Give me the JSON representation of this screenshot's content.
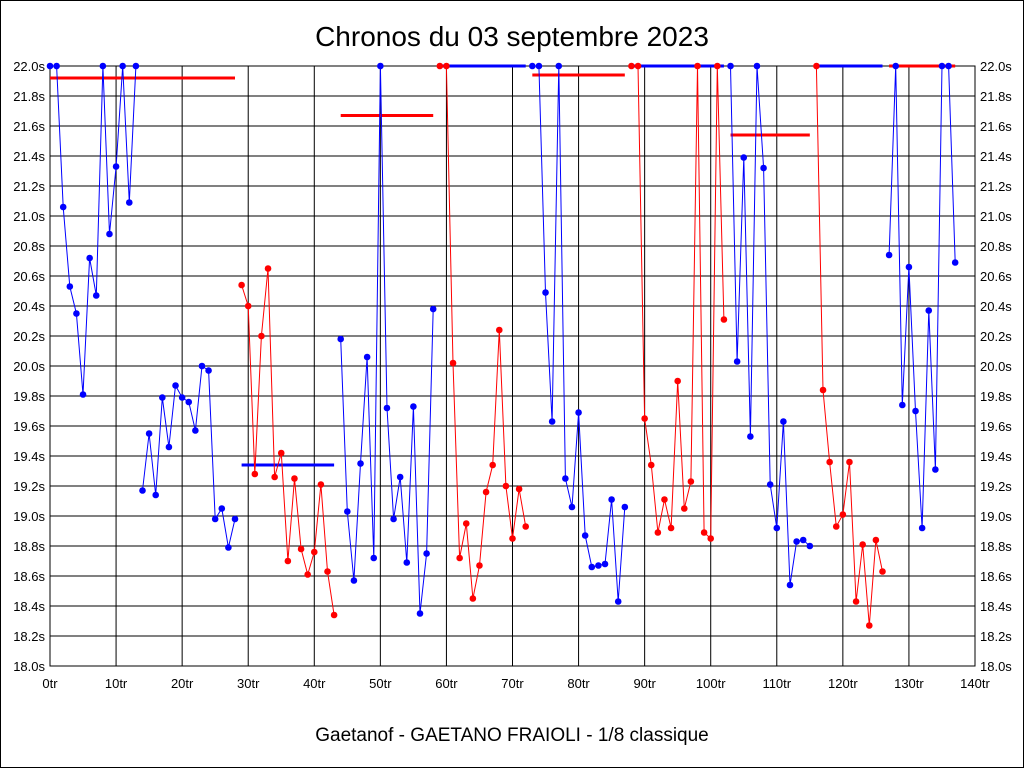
{
  "chart_data": {
    "type": "line",
    "title": "Chronos du 03 septembre 2023",
    "caption": "Gaetanof - GAETANO FRAIOLI - 1/8 classique",
    "xlim": [
      0,
      140
    ],
    "ylim": [
      18.0,
      22.0
    ],
    "x_ticks": [
      {
        "v": 0,
        "label": "0tr"
      },
      {
        "v": 10,
        "label": "10tr"
      },
      {
        "v": 20,
        "label": "20tr"
      },
      {
        "v": 30,
        "label": "30tr"
      },
      {
        "v": 40,
        "label": "40tr"
      },
      {
        "v": 50,
        "label": "50tr"
      },
      {
        "v": 60,
        "label": "60tr"
      },
      {
        "v": 70,
        "label": "70tr"
      },
      {
        "v": 80,
        "label": "80tr"
      },
      {
        "v": 90,
        "label": "90tr"
      },
      {
        "v": 100,
        "label": "100tr"
      },
      {
        "v": 110,
        "label": "110tr"
      },
      {
        "v": 120,
        "label": "120tr"
      },
      {
        "v": 130,
        "label": "130tr"
      },
      {
        "v": 140,
        "label": "140tr"
      }
    ],
    "y_ticks": [
      {
        "v": 18.0,
        "label": "18.0s"
      },
      {
        "v": 18.2,
        "label": "18.2s"
      },
      {
        "v": 18.4,
        "label": "18.4s"
      },
      {
        "v": 18.6,
        "label": "18.6s"
      },
      {
        "v": 18.8,
        "label": "18.8s"
      },
      {
        "v": 19.0,
        "label": "19.0s"
      },
      {
        "v": 19.2,
        "label": "19.2s"
      },
      {
        "v": 19.4,
        "label": "19.4s"
      },
      {
        "v": 19.6,
        "label": "19.6s"
      },
      {
        "v": 19.8,
        "label": "19.8s"
      },
      {
        "v": 20.0,
        "label": "20.0s"
      },
      {
        "v": 20.2,
        "label": "20.2s"
      },
      {
        "v": 20.4,
        "label": "20.4s"
      },
      {
        "v": 20.6,
        "label": "20.6s"
      },
      {
        "v": 20.8,
        "label": "20.8s"
      },
      {
        "v": 21.0,
        "label": "21.0s"
      },
      {
        "v": 21.2,
        "label": "21.2s"
      },
      {
        "v": 21.4,
        "label": "21.4s"
      },
      {
        "v": 21.6,
        "label": "21.6s"
      },
      {
        "v": 21.8,
        "label": "21.8s"
      },
      {
        "v": 22.0,
        "label": "22.0s"
      }
    ],
    "grid": true,
    "series": [
      {
        "color": "#0000ff",
        "x": [
          0,
          1,
          2,
          3,
          4,
          5,
          6,
          7,
          8,
          9,
          10,
          11,
          12,
          13
        ],
        "y": [
          22.0,
          22.0,
          21.06,
          20.53,
          20.35,
          19.81,
          20.72,
          20.47,
          22.0,
          20.88,
          21.33,
          22.0,
          21.09,
          22.0
        ]
      },
      {
        "color": "#0000ff",
        "x": [
          14,
          15,
          16,
          17,
          18,
          19,
          20,
          21,
          22,
          23,
          24,
          25,
          26,
          27,
          28
        ],
        "y": [
          19.17,
          19.55,
          19.14,
          19.79,
          19.46,
          19.87,
          19.79,
          19.76,
          19.57,
          20.0,
          19.97,
          18.98,
          19.05,
          18.79,
          18.98
        ]
      },
      {
        "color": "#ff0000",
        "x": [
          29,
          30,
          31,
          32,
          33,
          34,
          35,
          36,
          37,
          38,
          39,
          40,
          41,
          42,
          43
        ],
        "y": [
          20.54,
          20.4,
          19.28,
          20.2,
          20.65,
          19.26,
          19.42,
          18.7,
          19.25,
          18.78,
          18.61,
          18.76,
          19.21,
          18.63,
          18.34
        ]
      },
      {
        "color": "#0000ff",
        "x": [
          44,
          45,
          46,
          47,
          48,
          49,
          50,
          51,
          52,
          53,
          54,
          55,
          56,
          57,
          58
        ],
        "y": [
          20.18,
          19.03,
          18.57,
          19.35,
          20.06,
          18.72,
          22.0,
          19.72,
          18.98,
          19.26,
          18.69,
          19.73,
          18.35,
          18.75,
          20.38
        ]
      },
      {
        "color": "#ff0000",
        "x": [
          59,
          60,
          61,
          62,
          63,
          64,
          65,
          66,
          67,
          68,
          69,
          70,
          71,
          72
        ],
        "y": [
          22.0,
          22.0,
          20.02,
          18.72,
          18.95,
          18.45,
          18.67,
          19.16,
          19.34,
          20.24,
          19.2,
          18.85,
          19.18,
          18.93
        ]
      },
      {
        "color": "#0000ff",
        "x": [
          73,
          74,
          75,
          76,
          77,
          78,
          79,
          80,
          81,
          82,
          83,
          84,
          85,
          86,
          87
        ],
        "y": [
          22.0,
          22.0,
          20.49,
          19.63,
          22.0,
          19.25,
          19.06,
          19.69,
          18.87,
          18.66,
          18.67,
          18.68,
          19.11,
          18.43,
          19.06
        ]
      },
      {
        "color": "#ff0000",
        "x": [
          88,
          89,
          90,
          91,
          92,
          93,
          94,
          95,
          96,
          97,
          98,
          99,
          100,
          101,
          102
        ],
        "y": [
          22.0,
          22.0,
          19.65,
          19.34,
          18.89,
          19.11,
          18.92,
          19.9,
          19.05,
          19.23,
          22.0,
          18.89,
          18.85,
          22.0,
          20.31
        ]
      },
      {
        "color": "#0000ff",
        "x": [
          103,
          104,
          105,
          106,
          107,
          108,
          109,
          110,
          111,
          112,
          113,
          114,
          115
        ],
        "y": [
          22.0,
          20.03,
          21.39,
          19.53,
          22.0,
          21.32,
          19.21,
          18.92,
          19.63,
          18.54,
          18.83,
          18.84,
          18.8
        ]
      },
      {
        "color": "#ff0000",
        "x": [
          116,
          117,
          118,
          119,
          120,
          121,
          122,
          123,
          124,
          125,
          126
        ],
        "y": [
          22.0,
          19.84,
          19.36,
          18.93,
          19.01,
          19.36,
          18.43,
          18.81,
          18.27,
          18.84,
          18.63
        ]
      },
      {
        "color": "#0000ff",
        "x": [
          127,
          128,
          129,
          130,
          131,
          132,
          133,
          134,
          135,
          136,
          137
        ],
        "y": [
          20.74,
          22.0,
          19.74,
          20.66,
          19.7,
          18.92,
          20.37,
          19.31,
          22.0,
          22.0,
          20.69
        ]
      }
    ],
    "segments": [
      {
        "color": "#ff0000",
        "x0": 0,
        "x1": 28,
        "y": 21.92
      },
      {
        "color": "#0000ff",
        "x0": 29,
        "x1": 43,
        "y": 19.34
      },
      {
        "color": "#ff0000",
        "x0": 44,
        "x1": 58,
        "y": 21.67
      },
      {
        "color": "#0000ff",
        "x0": 59,
        "x1": 72,
        "y": 22.0
      },
      {
        "color": "#ff0000",
        "x0": 73,
        "x1": 87,
        "y": 21.94
      },
      {
        "color": "#0000ff",
        "x0": 88,
        "x1": 102,
        "y": 22.0
      },
      {
        "color": "#ff0000",
        "x0": 103,
        "x1": 115,
        "y": 21.54
      },
      {
        "color": "#0000ff",
        "x0": 116,
        "x1": 126,
        "y": 22.0
      },
      {
        "color": "#ff0000",
        "x0": 127,
        "x1": 137,
        "y": 22.0
      }
    ]
  }
}
